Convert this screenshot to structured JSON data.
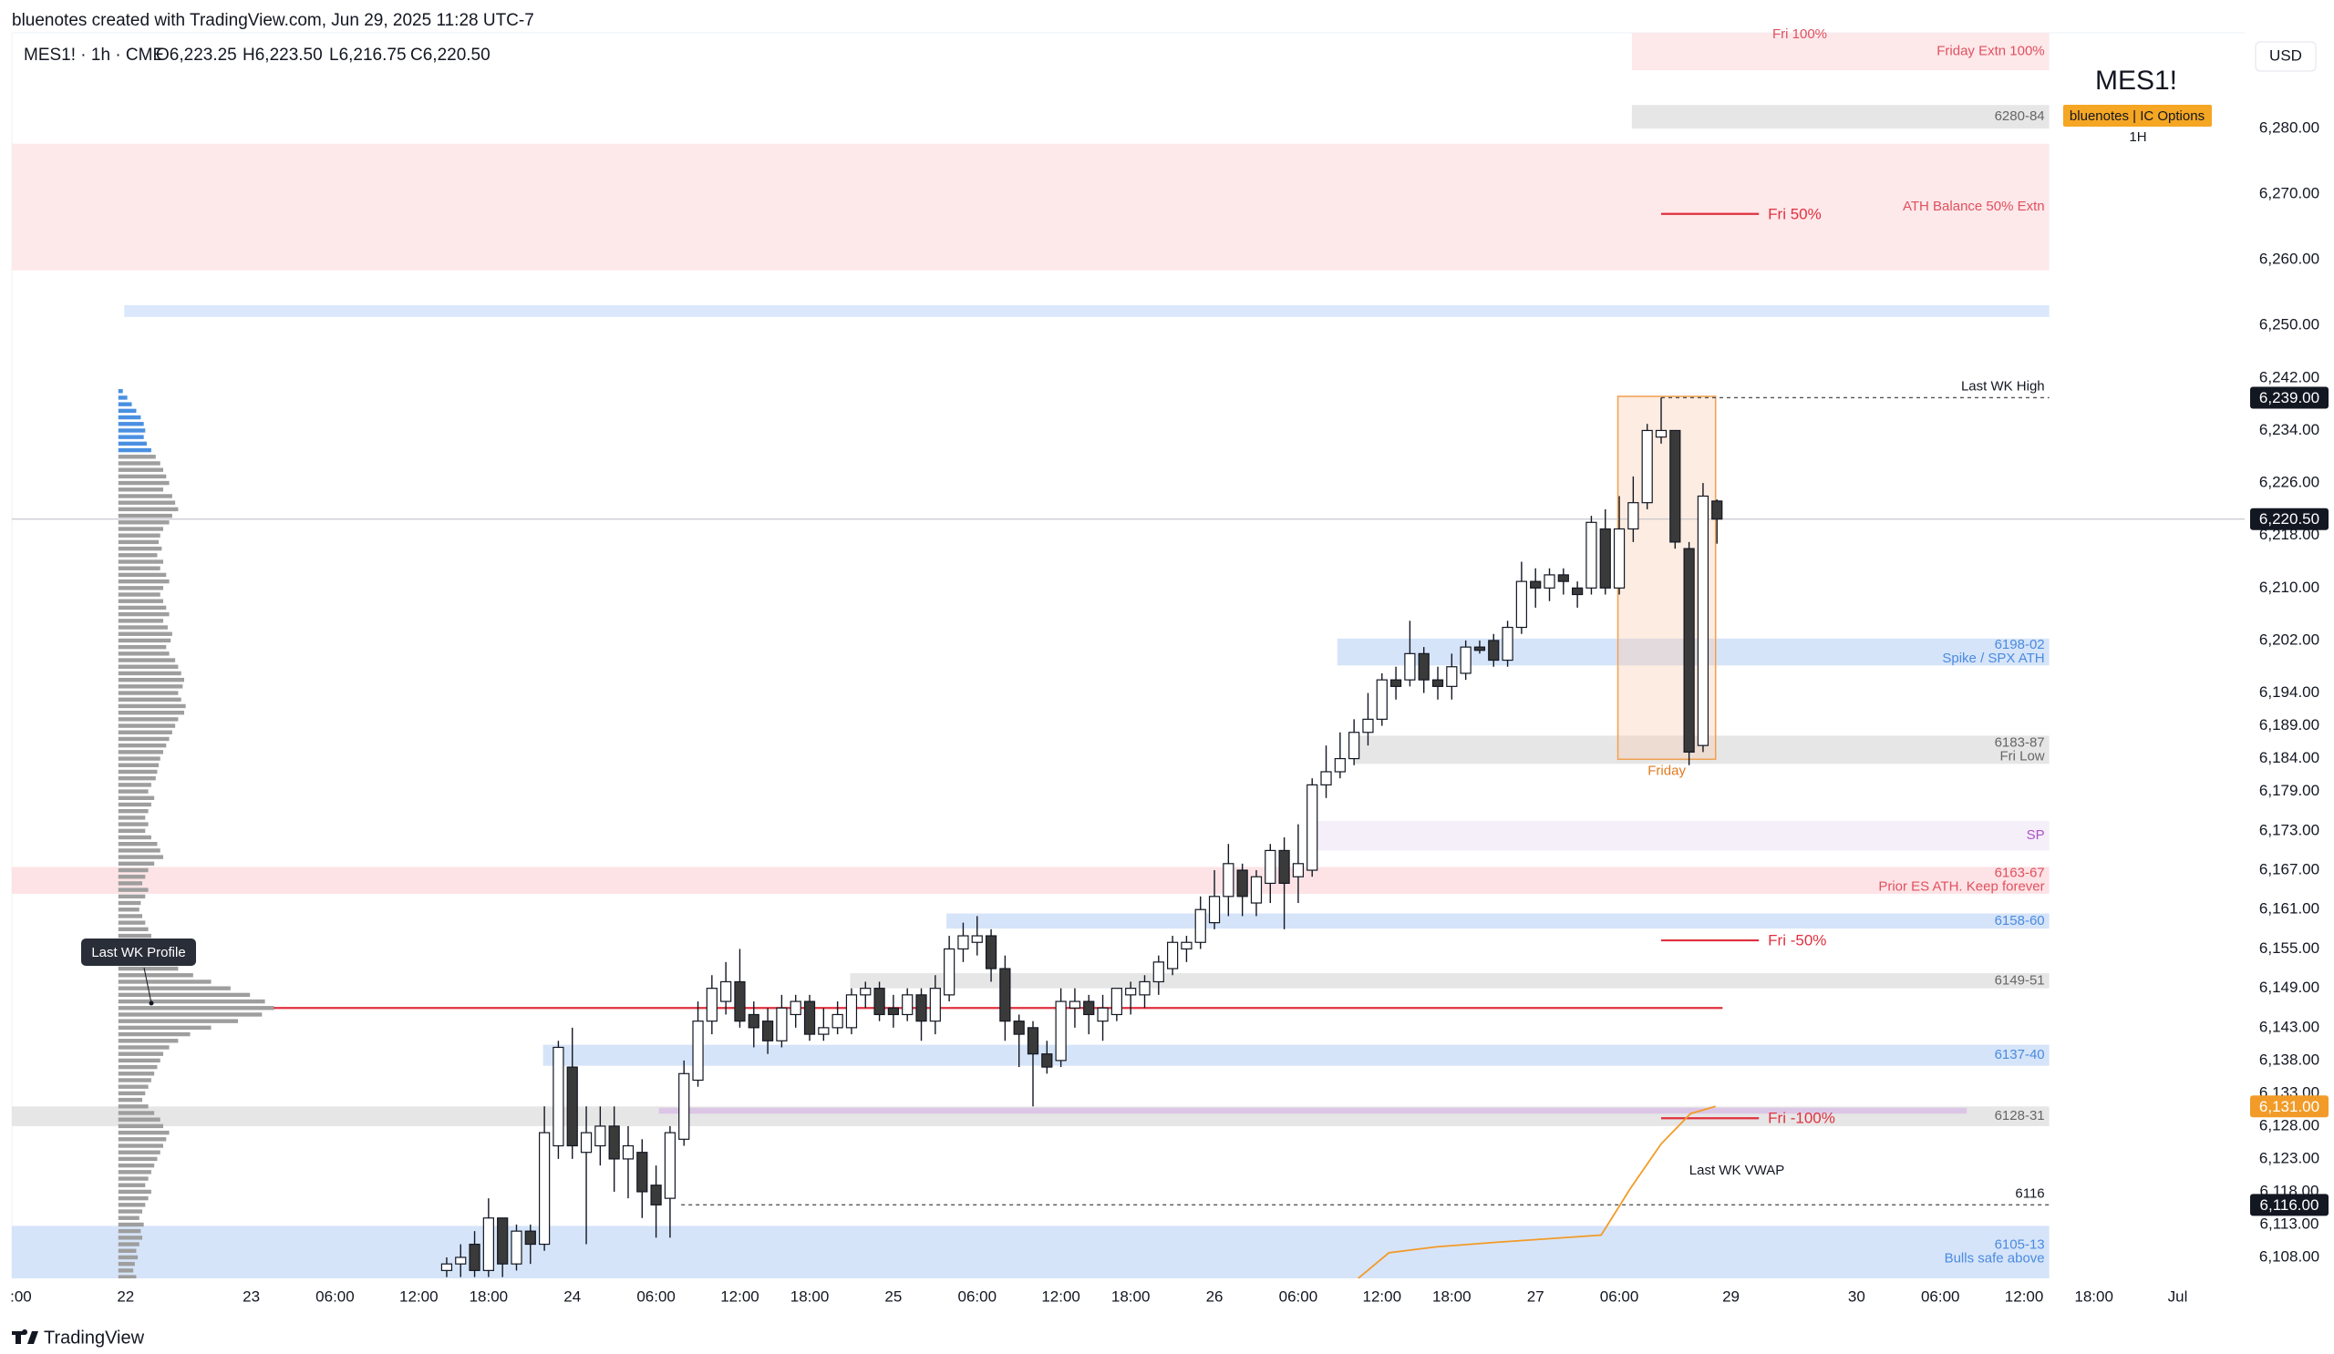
{
  "header": {
    "credit": "bluenotes created with TradingView.com, Jun 29, 2025 11:28 UTC-7",
    "symbol": "MES1! · 1h · CME",
    "ohlc": [
      "O6,223.25",
      "H6,223.50",
      "L6,216.75",
      "C6,220.50"
    ]
  },
  "chart_data": {
    "type": "candlestick",
    "title": "MES1!",
    "subtitle": "bluenotes | IC Options",
    "interval": "1H",
    "currency": "USD",
    "up_color": "#ffffff",
    "down_color": "#3a3a3a",
    "wick_color": "#131722",
    "x": [
      23,
      24,
      25,
      26,
      27,
      28,
      29,
      30,
      31,
      32,
      33,
      34,
      35,
      36,
      37,
      38,
      39,
      40,
      41,
      42,
      43,
      44,
      45,
      46,
      47,
      48,
      49,
      50,
      51,
      52,
      53,
      54,
      55,
      56,
      57,
      58,
      59,
      60,
      61,
      62,
      63,
      64,
      65,
      66,
      67,
      68,
      69,
      70,
      71,
      72,
      73,
      74,
      75,
      76,
      77,
      78,
      79,
      80,
      81,
      82,
      83,
      84,
      85,
      86,
      87,
      88,
      89,
      90,
      91,
      92,
      93,
      94,
      95,
      96,
      97,
      98,
      99,
      100,
      101,
      102,
      103,
      104,
      105,
      106,
      107,
      108,
      109,
      110,
      111,
      112,
      113,
      114
    ],
    "open": [
      6106,
      6107,
      6110,
      6106,
      6114,
      6107,
      6112,
      6110,
      6125,
      6137,
      6124,
      6125,
      6128,
      6123,
      6124,
      6119,
      6117,
      6126,
      6135,
      6144,
      6147,
      6150,
      6145,
      6144,
      6141,
      6145,
      6147,
      6142,
      6143,
      6143,
      6148,
      6149,
      6146,
      6145,
      6148,
      6144,
      6148,
      6155,
      6156,
      6157,
      6152,
      6144,
      6143,
      6139,
      6138,
      6146,
      6147,
      6144,
      6145,
      6148,
      6148,
      6150,
      6152,
      6155,
      6156,
      6159,
      6163,
      6167,
      6162,
      6165,
      6170,
      6166,
      6167,
      6180,
      6182,
      6184,
      6188,
      6190,
      6196,
      6196,
      6200,
      6196,
      6195,
      6197,
      6201,
      6202,
      6199,
      6204,
      6211,
      6210,
      6212,
      6210,
      6210,
      6219,
      6210,
      6219,
      6223,
      6233,
      6234,
      6216,
      6186,
      6223.25
    ],
    "high": [
      6108,
      6110,
      6112,
      6117,
      6114,
      6113,
      6113,
      6131,
      6141,
      6143,
      6131,
      6131,
      6131,
      6128,
      6126,
      6122,
      6128,
      6138,
      6147,
      6151,
      6153,
      6155,
      6147,
      6146,
      6148,
      6148,
      6148,
      6146,
      6147,
      6149,
      6150,
      6150,
      6148,
      6149,
      6149,
      6151,
      6157,
      6159,
      6160,
      6158,
      6154,
      6145,
      6144,
      6141,
      6149,
      6149,
      6148,
      6148,
      6149,
      6150,
      6151,
      6154,
      6157,
      6157,
      6163,
      6167,
      6171,
      6168,
      6167,
      6171,
      6172,
      6174,
      6181,
      6186,
      6188,
      6190,
      6194,
      6197,
      6198,
      6205,
      6201,
      6198,
      6200,
      6202,
      6202,
      6203,
      6205,
      6214,
      6213,
      6213,
      6213,
      6211,
      6221,
      6222,
      6224,
      6227,
      6235,
      6239,
      6234,
      6217,
      6226,
      6223.5
    ],
    "low": [
      6105,
      6105,
      6105,
      6105,
      6105,
      6106,
      6107,
      6109,
      6123,
      6123,
      6110,
      6122,
      6118,
      6117,
      6114,
      6111,
      6111,
      6125,
      6134,
      6142,
      6145,
      6143,
      6140,
      6139,
      6140,
      6143,
      6141,
      6141,
      6142,
      6142,
      6146,
      6144,
      6143,
      6144,
      6141,
      6142,
      6147,
      6153,
      6154,
      6150,
      6141,
      6137,
      6131,
      6136,
      6137,
      6143,
      6142,
      6141,
      6144,
      6145,
      6146,
      6148,
      6151,
      6153,
      6155,
      6158,
      6160,
      6160,
      6160,
      6162,
      6158,
      6162,
      6166,
      6178,
      6181,
      6183,
      6186,
      6189,
      6193,
      6195,
      6194,
      6193,
      6193,
      6196,
      6200,
      6198,
      6198,
      6203,
      6207,
      6208,
      6209,
      6207,
      6209,
      6209,
      6209,
      6217,
      6222,
      6232,
      6216,
      6183,
      6185,
      6216.75
    ],
    "close": [
      6107,
      6108,
      6106,
      6114,
      6107,
      6112,
      6110,
      6127,
      6140,
      6125,
      6127,
      6128,
      6123,
      6125,
      6118,
      6116,
      6127,
      6136,
      6144,
      6149,
      6150,
      6144,
      6143,
      6141,
      6146,
      6147,
      6142,
      6143,
      6145,
      6148,
      6149,
      6145,
      6145,
      6148,
      6144,
      6149,
      6155,
      6157,
      6157,
      6152,
      6144,
      6142,
      6139,
      6137,
      6147,
      6147,
      6145,
      6146,
      6149,
      6149,
      6150,
      6153,
      6156,
      6156,
      6161,
      6163,
      6168,
      6163,
      6166,
      6170,
      6165,
      6168,
      6180,
      6182,
      6184,
      6188,
      6190,
      6196,
      6195,
      6200,
      6196,
      6195,
      6198,
      6201,
      6200.5,
      6199,
      6204,
      6211,
      6210,
      6212,
      6211,
      6209,
      6220,
      6210,
      6219,
      6223,
      6234,
      6234,
      6217,
      6185,
      6224,
      6220.5
    ],
    "xlim": [
      -8.15,
      151.8
    ],
    "xticks": [
      {
        "value": -7.5,
        "label": ":00"
      },
      {
        "value": 0,
        "label": "22"
      },
      {
        "value": 9,
        "label": "23"
      },
      {
        "value": 15,
        "label": "06:00"
      },
      {
        "value": 21,
        "label": "12:00"
      },
      {
        "value": 26,
        "label": "18:00"
      },
      {
        "value": 32,
        "label": "24"
      },
      {
        "value": 38,
        "label": "06:00"
      },
      {
        "value": 44,
        "label": "12:00"
      },
      {
        "value": 49,
        "label": "18:00"
      },
      {
        "value": 55,
        "label": "25"
      },
      {
        "value": 61,
        "label": "06:00"
      },
      {
        "value": 67,
        "label": "12:00"
      },
      {
        "value": 72,
        "label": "18:00"
      },
      {
        "value": 78,
        "label": "26"
      },
      {
        "value": 84,
        "label": "06:00"
      },
      {
        "value": 90,
        "label": "12:00"
      },
      {
        "value": 95,
        "label": "18:00"
      },
      {
        "value": 101,
        "label": "27"
      },
      {
        "value": 107,
        "label": "06:00"
      },
      {
        "value": 115,
        "label": "29"
      },
      {
        "value": 124,
        "label": "30"
      },
      {
        "value": 130,
        "label": "06:00"
      },
      {
        "value": 136,
        "label": "12:00"
      },
      {
        "value": 141,
        "label": "18:00"
      },
      {
        "value": 147,
        "label": "Jul"
      }
    ],
    "ylim": [
      6104.8,
      6294.6
    ],
    "yticks": [
      {
        "value": 6280,
        "label": "6,280.00"
      },
      {
        "value": 6270,
        "label": "6,270.00"
      },
      {
        "value": 6260,
        "label": "6,260.00"
      },
      {
        "value": 6250,
        "label": "6,250.00"
      },
      {
        "value": 6242,
        "label": "6,242.00"
      },
      {
        "value": 6234,
        "label": "6,234.00"
      },
      {
        "value": 6226,
        "label": "6,226.00"
      },
      {
        "value": 6218,
        "label": "6,218.00"
      },
      {
        "value": 6210,
        "label": "6,210.00"
      },
      {
        "value": 6202,
        "label": "6,202.00"
      },
      {
        "value": 6194,
        "label": "6,194.00"
      },
      {
        "value": 6189,
        "label": "6,189.00"
      },
      {
        "value": 6184,
        "label": "6,184.00"
      },
      {
        "value": 6179,
        "label": "6,179.00"
      },
      {
        "value": 6173,
        "label": "6,173.00"
      },
      {
        "value": 6167,
        "label": "6,167.00"
      },
      {
        "value": 6161,
        "label": "6,161.00"
      },
      {
        "value": 6155,
        "label": "6,155.00"
      },
      {
        "value": 6149,
        "label": "6,149.00"
      },
      {
        "value": 6143,
        "label": "6,143.00"
      },
      {
        "value": 6138,
        "label": "6,138.00"
      },
      {
        "value": 6133,
        "label": "6,133.00"
      },
      {
        "value": 6128,
        "label": "6,128.00"
      },
      {
        "value": 6123,
        "label": "6,123.00"
      },
      {
        "value": 6118,
        "label": "6,118.00"
      },
      {
        "value": 6113,
        "label": "6,113.00"
      },
      {
        "value": 6108,
        "label": "6,108.00"
      }
    ],
    "grid": false,
    "price_labels": [
      {
        "value": 6239,
        "label": "6,239.00",
        "color": "#131722"
      },
      {
        "value": 6220.5,
        "label": "6,220.50",
        "color": "#131722",
        "line": "#b8bcc6"
      },
      {
        "value": 6131,
        "label": "6,131.00",
        "color": "#f29b28"
      },
      {
        "value": 6116,
        "label": "6,116.00",
        "color": "#131722"
      }
    ],
    "zones": [
      {
        "from": 6288.9,
        "to": 6294.6,
        "start": 107.9,
        "end": 137.8,
        "color": "#fde8ea",
        "labels": [
          "Friday Extn 100%"
        ],
        "label_color": "#e0505e"
      },
      {
        "from": 6280,
        "to": 6283.6,
        "start": 107.9,
        "end": 137.8,
        "color": "#e6e6e6",
        "labels": [
          "6280-84"
        ],
        "label_color": "#666666"
      },
      {
        "from": 6258.4,
        "to": 6277.7,
        "start": -8.15,
        "end": 137.8,
        "color": "#fde8ea",
        "labels": [
          "ATH Balance 50% Extn"
        ],
        "label_color": "#e0505e"
      },
      {
        "from": 6251.3,
        "to": 6253.1,
        "start": -0.1,
        "end": 137.8,
        "color": "#dbe8fb"
      },
      {
        "from": 6198.2,
        "to": 6202.3,
        "start": 86.8,
        "end": 137.8,
        "color": "#d6e4f9",
        "labels": [
          "6198-02",
          "Spike / SPX ATH"
        ],
        "label_color": "#4a8be0"
      },
      {
        "from": 6183.2,
        "to": 6187.5,
        "start": 88,
        "end": 137.8,
        "color": "#e6e6e6",
        "labels": [
          "6183-87",
          "Fri Low"
        ],
        "label_color": "#666666"
      },
      {
        "from": 6170,
        "to": 6174.5,
        "start": 85.3,
        "end": 137.8,
        "color": "#f5eff9",
        "labels": [
          "SP"
        ],
        "label_color": "#b04fc8"
      },
      {
        "from": 6163.4,
        "to": 6167.5,
        "start": -8.15,
        "end": 137.8,
        "color": "#fde3e6",
        "labels": [
          "6163-67",
          "Prior ES ATH. Keep forever"
        ],
        "label_color": "#e0505e"
      },
      {
        "from": 6158.1,
        "to": 6160.4,
        "start": 58.8,
        "end": 137.8,
        "color": "#d6e4f9",
        "labels": [
          "6158-60"
        ],
        "label_color": "#4a8be0"
      },
      {
        "from": 6149,
        "to": 6151.3,
        "start": 51.9,
        "end": 137.8,
        "color": "#e6e6e6",
        "labels": [
          "6149-51"
        ],
        "label_color": "#666666"
      },
      {
        "from": 6137.2,
        "to": 6140.4,
        "start": 29.9,
        "end": 137.8,
        "color": "#d6e4f9",
        "labels": [
          "6137-40"
        ],
        "label_color": "#4a8be0"
      },
      {
        "from": 6128,
        "to": 6131,
        "start": -8.15,
        "end": 137.8,
        "color": "#e6e6e6",
        "labels": [
          "6128-31"
        ],
        "label_color": "#666666"
      },
      {
        "from": 6129.9,
        "to": 6130.8,
        "start": 38.2,
        "end": 131.9,
        "color": "#dcc6e6"
      },
      {
        "from": 6104.8,
        "to": 6112.8,
        "start": -8.15,
        "end": 137.8,
        "color": "#d6e4f9",
        "labels": [
          "6105-13",
          "Bulls safe above"
        ],
        "label_color": "#4a8be0"
      },
      {
        "from": 6183.9,
        "to": 6239.2,
        "start": 106.9,
        "end": 113.9,
        "color": "rgba(250,200,170,0.35)",
        "border": "#f0a050",
        "labels": [
          "Friday"
        ],
        "label_color": "#e07a1f",
        "label_pos": "below"
      }
    ],
    "levels": [
      {
        "price": 6267,
        "start": 110,
        "end": 117,
        "color": "#e0303e",
        "labels": [
          "Fri 50%"
        ],
        "label_pos": "after"
      },
      {
        "price": 6156.3,
        "start": 110,
        "end": 117,
        "color": "#e0303e",
        "labels": [
          "Fri -50%"
        ],
        "label_pos": "after"
      },
      {
        "price": 6129.2,
        "start": 110,
        "end": 117,
        "color": "#e0303e",
        "labels": [
          "Fri -100%"
        ],
        "label_pos": "after"
      },
      {
        "price": 6146,
        "start": 10.6,
        "end": 114.4,
        "color": "#e0303e"
      },
      {
        "price": 6239,
        "start": 110,
        "end": 137.8,
        "color": "#555555",
        "dash": true,
        "labels": [
          "Last WK High"
        ],
        "label_pos": "above"
      },
      {
        "price": 6116,
        "start": 39.8,
        "end": 137.8,
        "color": "#555555",
        "dash": true,
        "labels": [
          "6116"
        ],
        "label_pos": "above"
      }
    ],
    "annotations": [
      {
        "text": "Fri 100%",
        "color": "#e0505e"
      }
    ],
    "vwap": {
      "name": "Last WK VWAP",
      "color": "#f29b28",
      "x": [
        88.3,
        90.5,
        93.9,
        98.2,
        105.7,
        107.8,
        110,
        112.1,
        113.9
      ],
      "values": [
        6104.8,
        6108.7,
        6109.6,
        6110.3,
        6111.4,
        6118.5,
        6125.3,
        6129.9,
        6131
      ]
    },
    "profile_name": "Last WK Profile",
    "profile": [
      {
        "color": "#4a90e2",
        "prices": [
          6240,
          6239,
          6238,
          6237,
          6236,
          6235,
          6234,
          6233,
          6232,
          6231
        ],
        "values": [
          3,
          6,
          9,
          12,
          15,
          17,
          18,
          17,
          19,
          22
        ]
      },
      {
        "color": "#9e9e9e",
        "prices": [
          6230,
          6229,
          6228,
          6227,
          6226,
          6225,
          6224,
          6223,
          6222,
          6221,
          6220,
          6219,
          6218,
          6217,
          6216,
          6215,
          6214,
          6213,
          6212,
          6211,
          6210,
          6209,
          6208,
          6207,
          6206,
          6205,
          6204,
          6203,
          6202,
          6201,
          6200,
          6199,
          6198,
          6197,
          6196,
          6195,
          6194,
          6193,
          6192,
          6191,
          6190,
          6189,
          6188,
          6187,
          6186,
          6185,
          6184,
          6183,
          6182,
          6181,
          6180,
          6179,
          6178,
          6177,
          6176,
          6175,
          6174,
          6173,
          6172,
          6171,
          6170,
          6169,
          6168,
          6167,
          6166,
          6165,
          6164,
          6163,
          6162,
          6161,
          6160,
          6159,
          6158,
          6157,
          6156,
          6155,
          6154,
          6153,
          6152,
          6151,
          6150,
          6149,
          6148,
          6147,
          6146,
          6145,
          6144,
          6143,
          6142,
          6141,
          6140,
          6139,
          6138,
          6137,
          6136,
          6135,
          6134,
          6133,
          6132,
          6131,
          6130,
          6129,
          6128,
          6127,
          6126,
          6125,
          6124,
          6123,
          6122,
          6121,
          6120,
          6119,
          6118,
          6117,
          6116,
          6115,
          6114,
          6113,
          6112,
          6111,
          6110,
          6109,
          6108,
          6107,
          6106,
          6105
        ],
        "values": [
          25,
          28,
          30,
          32,
          34,
          30,
          36,
          38,
          40,
          36,
          34,
          30,
          28,
          27,
          29,
          26,
          30,
          28,
          32,
          34,
          30,
          28,
          30,
          32,
          34,
          30,
          33,
          36,
          35,
          32,
          34,
          38,
          40,
          42,
          44,
          43,
          40,
          42,
          45,
          44,
          40,
          38,
          36,
          34,
          32,
          30,
          28,
          27,
          26,
          25,
          22,
          20,
          24,
          22,
          20,
          18,
          20,
          18,
          22,
          26,
          28,
          30,
          24,
          20,
          18,
          16,
          20,
          18,
          15,
          14,
          16,
          18,
          20,
          22,
          24,
          26,
          28,
          32,
          40,
          50,
          62,
          75,
          88,
          98,
          104,
          96,
          80,
          62,
          48,
          40,
          34,
          30,
          28,
          26,
          24,
          22,
          20,
          18,
          16,
          20,
          24,
          28,
          30,
          34,
          32,
          30,
          28,
          26,
          24,
          22,
          20,
          18,
          22,
          20,
          18,
          16,
          14,
          17,
          15,
          16,
          14,
          12,
          13,
          11,
          10,
          12
        ]
      }
    ]
  },
  "footer": {
    "brand": "TradingView"
  }
}
